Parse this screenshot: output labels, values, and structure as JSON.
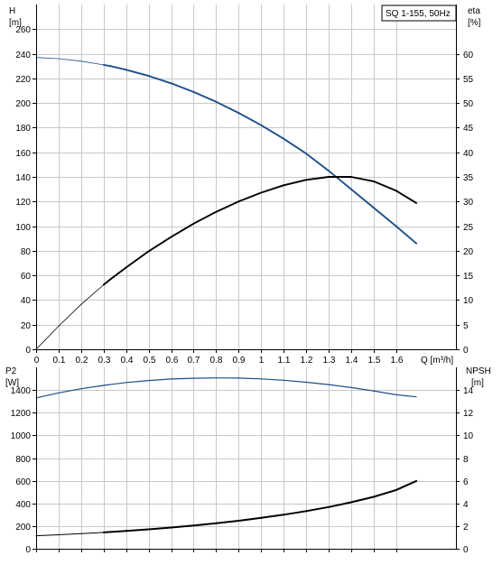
{
  "chart_data": [
    {
      "type": "line",
      "title": "SQ 1-155, 50Hz",
      "xlabel": "Q [m³/h]",
      "x_ticks": [
        0,
        0.1,
        0.2,
        0.3,
        0.4,
        0.5,
        0.6,
        0.7,
        0.8,
        0.9,
        1.0,
        1.1,
        1.2,
        1.3,
        1.4,
        1.5,
        1.6
      ],
      "xlim": [
        0,
        1.8
      ],
      "y_left": {
        "label_line1": "H",
        "label_line2": "[m]",
        "range": [
          0,
          280
        ],
        "ticks": [
          0,
          20,
          40,
          60,
          80,
          100,
          120,
          140,
          160,
          180,
          200,
          220,
          240,
          260
        ]
      },
      "y_right": {
        "label_line1": "eta",
        "label_line2": "[%]",
        "range": [
          0,
          70
        ],
        "ticks": [
          0,
          5,
          10,
          15,
          20,
          25,
          30,
          35,
          40,
          45,
          50,
          55,
          60
        ]
      },
      "grid": true,
      "series": [
        {
          "axis": "left",
          "color": "#1c4f8a",
          "x": [
            0,
            0.1,
            0.2,
            0.3,
            0.33,
            0.4,
            0.5,
            0.6,
            0.7,
            0.8,
            0.9,
            1.0,
            1.1,
            1.2,
            1.3,
            1.4,
            1.5,
            1.6,
            1.69
          ],
          "y": [
            237,
            236,
            234,
            231,
            230,
            227,
            222,
            216,
            209,
            201,
            192,
            182,
            171,
            159,
            145,
            130,
            115,
            100,
            86
          ]
        },
        {
          "axis": "right",
          "color": "#000000",
          "x": [
            0,
            0.1,
            0.2,
            0.3,
            0.33,
            0.4,
            0.5,
            0.6,
            0.7,
            0.8,
            0.9,
            1.0,
            1.1,
            1.2,
            1.3,
            1.4,
            1.5,
            1.6,
            1.69
          ],
          "y": [
            0,
            4.7,
            9.1,
            13.1,
            14.2,
            16.6,
            19.9,
            22.8,
            25.5,
            27.9,
            30.0,
            31.8,
            33.3,
            34.4,
            35.0,
            35.0,
            34.1,
            32.2,
            29.7
          ]
        }
      ]
    },
    {
      "type": "line",
      "title": "",
      "x_ticks": [
        0,
        0.1,
        0.2,
        0.3,
        0.4,
        0.5,
        0.6,
        0.7,
        0.8,
        0.9,
        1.0,
        1.1,
        1.2,
        1.3,
        1.4,
        1.5,
        1.6
      ],
      "xlim": [
        0,
        1.8
      ],
      "y_left": {
        "label_line1": "P2",
        "label_line2": "[W]",
        "range": [
          0,
          1600
        ],
        "ticks": [
          0,
          200,
          400,
          600,
          800,
          1000,
          1200,
          1400
        ]
      },
      "y_right": {
        "label_line1": "NPSH",
        "label_line2": "[m]",
        "range": [
          0,
          16
        ],
        "ticks": [
          0,
          2,
          4,
          6,
          8,
          10,
          12,
          14
        ]
      },
      "grid": true,
      "series": [
        {
          "axis": "left",
          "color": "#1c4f8a",
          "x": [
            0,
            0.1,
            0.2,
            0.3,
            0.4,
            0.5,
            0.6,
            0.7,
            0.8,
            0.9,
            1.0,
            1.1,
            1.2,
            1.3,
            1.4,
            1.5,
            1.6,
            1.69
          ],
          "y": [
            1330,
            1375,
            1411,
            1441,
            1466,
            1484,
            1497,
            1504,
            1507,
            1505,
            1498,
            1486,
            1469,
            1448,
            1422,
            1392,
            1358,
            1340
          ]
        },
        {
          "axis": "left",
          "color": "#000000",
          "x": [
            0,
            0.1,
            0.2,
            0.3,
            0.4,
            0.5,
            0.6,
            0.7,
            0.8,
            0.9,
            1.0,
            1.1,
            1.2,
            1.3,
            1.4,
            1.5,
            1.6,
            1.69
          ],
          "y": [
            115,
            123,
            133,
            144,
            157,
            171,
            187,
            205,
            225,
            247,
            272,
            300,
            332,
            368,
            410,
            458,
            518,
            598
          ]
        }
      ]
    }
  ]
}
